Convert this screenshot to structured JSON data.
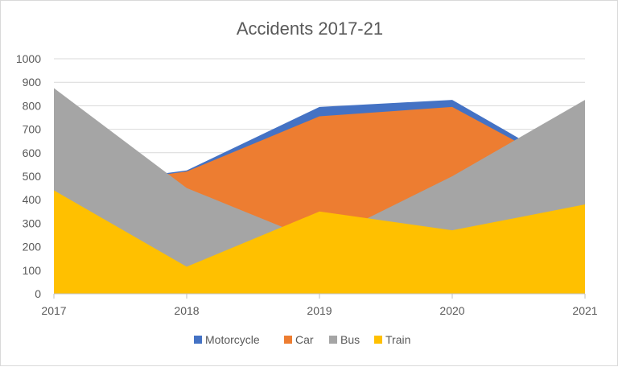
{
  "chart_data": {
    "type": "area",
    "title": "Accidents 2017-21",
    "xlabel": "",
    "ylabel": "",
    "x": [
      "2017",
      "2018",
      "2019",
      "2020",
      "2021"
    ],
    "ylim": [
      0,
      1000
    ],
    "yticks": [
      0,
      100,
      200,
      300,
      400,
      500,
      600,
      700,
      800,
      900,
      1000
    ],
    "grid": true,
    "legend_position": "bottom",
    "series": [
      {
        "name": "Motorcycle",
        "color": "#4472c4",
        "values": [
          450,
          525,
          795,
          825,
          500
        ]
      },
      {
        "name": "Car",
        "color": "#ed7d31",
        "values": [
          445,
          520,
          755,
          795,
          490
        ]
      },
      {
        "name": "Bus",
        "color": "#a5a5a5",
        "values": [
          875,
          450,
          220,
          500,
          825
        ]
      },
      {
        "name": "Train",
        "color": "#ffc000",
        "values": [
          440,
          115,
          350,
          270,
          380
        ]
      }
    ],
    "draw_order": [
      "Motorcycle",
      "Car",
      "Bus",
      "Train"
    ]
  }
}
